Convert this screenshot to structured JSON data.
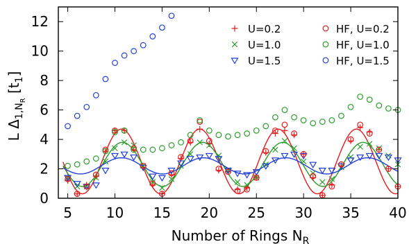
{
  "chart_data": {
    "type": "scatter",
    "title": "",
    "xlabel_main": "Number of Rings N",
    "xlabel_sub": "R",
    "ylabel_pre": "L Δ",
    "ylabel_sub": "1,N",
    "ylabel_subsub": "R",
    "ylabel_post": " [t",
    "ylabel_unit_sub": "1",
    "ylabel_close": "]",
    "xlim": [
      4,
      40
    ],
    "ylim": [
      0,
      13
    ],
    "xticks": [
      5,
      10,
      15,
      20,
      25,
      30,
      35,
      40
    ],
    "yticks": [
      0,
      2,
      4,
      6,
      8,
      10,
      12
    ],
    "legend_position": "top-right",
    "grid": false,
    "series": [
      {
        "name": "U=0.2",
        "marker": "plus",
        "color": "#e41a1c",
        "x": [
          5,
          6,
          7,
          8,
          9,
          10,
          11,
          12,
          13,
          14,
          15,
          16,
          17,
          18,
          19,
          20,
          21,
          22,
          23,
          24,
          25,
          26,
          27,
          28,
          29,
          30,
          31,
          32,
          33,
          34,
          35,
          36,
          37,
          38,
          39,
          40
        ],
        "y": [
          1.2,
          0.3,
          0.9,
          1.5,
          3.2,
          4.6,
          4.6,
          3.3,
          2.1,
          0.9,
          0.3,
          1.6,
          2.7,
          3.8,
          4.7,
          3.7,
          1.9,
          1.8,
          0.6,
          0.7,
          1.4,
          3.1,
          4.4,
          4.6,
          4.3,
          3.0,
          1.4,
          0.2,
          0.9,
          2.2,
          3.9,
          4.8,
          4.5,
          3.3,
          2.0,
          0.8
        ]
      },
      {
        "name": "U=1.0",
        "marker": "x",
        "color": "#2a9d2a",
        "x": [
          5,
          6,
          7,
          8,
          9,
          10,
          11,
          12,
          13,
          14,
          15,
          16,
          17,
          18,
          19,
          20,
          21,
          22,
          23,
          24,
          25,
          26,
          27,
          28,
          29,
          30,
          31,
          32,
          33,
          34,
          35,
          36,
          37,
          38,
          39,
          40
        ],
        "y": [
          1.4,
          0.8,
          0.8,
          1.4,
          2.5,
          3.4,
          3.8,
          3.6,
          2.2,
          1.1,
          0.7,
          1.3,
          2.2,
          3.0,
          3.8,
          3.6,
          2.9,
          1.9,
          1.1,
          0.9,
          1.4,
          2.3,
          3.3,
          3.9,
          3.4,
          2.5,
          1.7,
          1.1,
          1.3,
          2.1,
          2.8,
          3.5,
          3.7,
          3.4,
          2.9,
          2.3
        ]
      },
      {
        "name": "U=1.5",
        "marker": "triangle-down",
        "color": "#1f3fd6",
        "x": [
          5,
          6,
          7,
          8,
          9,
          10,
          11,
          12,
          13,
          14,
          15,
          16,
          17,
          18,
          19,
          20,
          21,
          22,
          23,
          24,
          25,
          26,
          27,
          28,
          29,
          30,
          31,
          32,
          33,
          34,
          35,
          36,
          37,
          38,
          39,
          40
        ],
        "y": [
          1.4,
          1.0,
          0.8,
          0.9,
          1.9,
          2.9,
          3.0,
          2.8,
          2.1,
          1.5,
          1.4,
          1.9,
          2.4,
          2.7,
          2.8,
          2.9,
          2.7,
          1.9,
          1.7,
          1.6,
          1.8,
          2.2,
          2.6,
          2.9,
          3.0,
          2.9,
          2.3,
          1.9,
          1.9,
          2.2,
          2.6,
          2.8,
          2.9,
          2.9,
          2.8,
          2.6
        ]
      },
      {
        "name": "HF, U=0.2",
        "marker": "circle",
        "color": "#e41a1c",
        "x": [
          5,
          6,
          7,
          8,
          9,
          10,
          11,
          12,
          13,
          14,
          15,
          16,
          17,
          18,
          19,
          20,
          21,
          22,
          23,
          24,
          25,
          26,
          27,
          28,
          29,
          30,
          31,
          32,
          33,
          34,
          35,
          36,
          37,
          38,
          39,
          40
        ],
        "y": [
          1.3,
          0.3,
          0.8,
          1.6,
          3.3,
          4.6,
          4.6,
          3.4,
          2.2,
          1.0,
          0.3,
          1.7,
          2.8,
          3.9,
          5.2,
          3.9,
          2.0,
          1.8,
          0.5,
          0.6,
          1.4,
          3.2,
          4.6,
          5.0,
          4.4,
          3.0,
          1.5,
          0.2,
          0.8,
          2.3,
          4.0,
          5.0,
          4.4,
          3.3,
          2.0,
          0.8
        ]
      },
      {
        "name": "HF, U=1.0",
        "marker": "circle",
        "color": "#2a9d2a",
        "x": [
          5,
          6,
          7,
          8,
          9,
          10,
          11,
          12,
          13,
          14,
          15,
          16,
          17,
          18,
          19,
          20,
          21,
          22,
          23,
          24,
          25,
          26,
          27,
          28,
          29,
          30,
          31,
          32,
          33,
          34,
          35,
          36,
          37,
          38,
          39,
          40
        ],
        "y": [
          2.2,
          2.3,
          2.5,
          2.7,
          3.2,
          4.5,
          4.6,
          3.3,
          3.3,
          3.3,
          3.4,
          3.6,
          3.8,
          4.3,
          5.3,
          4.6,
          4.3,
          4.2,
          4.3,
          4.4,
          4.6,
          4.9,
          5.5,
          6.0,
          5.5,
          5.3,
          5.1,
          5.2,
          5.3,
          5.6,
          6.2,
          6.9,
          6.7,
          6.3,
          6.1,
          6.0
        ]
      },
      {
        "name": "HF, U=1.5",
        "marker": "circle",
        "color": "#1f3fd6",
        "x": [
          5,
          6,
          7,
          8,
          9,
          10,
          11,
          12,
          13,
          14,
          15,
          16
        ],
        "y": [
          4.9,
          5.6,
          6.2,
          7.0,
          8.1,
          9.2,
          9.7,
          10.0,
          10.4,
          11.0,
          11.6,
          12.4
        ]
      }
    ],
    "fit_curves": [
      {
        "color": "#e41a1c",
        "offset": 2.5,
        "amp": 2.2,
        "period": 8.3,
        "peak": 10.7,
        "xrange": [
          4.5,
          40
        ]
      },
      {
        "color": "#2a9d2a",
        "offset": 2.3,
        "amp": 1.5,
        "period": 8.5,
        "peak": 10.8,
        "xrange": [
          4.5,
          40
        ]
      },
      {
        "color": "#1f3fd6",
        "offset": 2.2,
        "amp": 0.55,
        "period": 8.7,
        "peak": 10.7,
        "xrange": [
          4.5,
          40
        ]
      }
    ]
  }
}
